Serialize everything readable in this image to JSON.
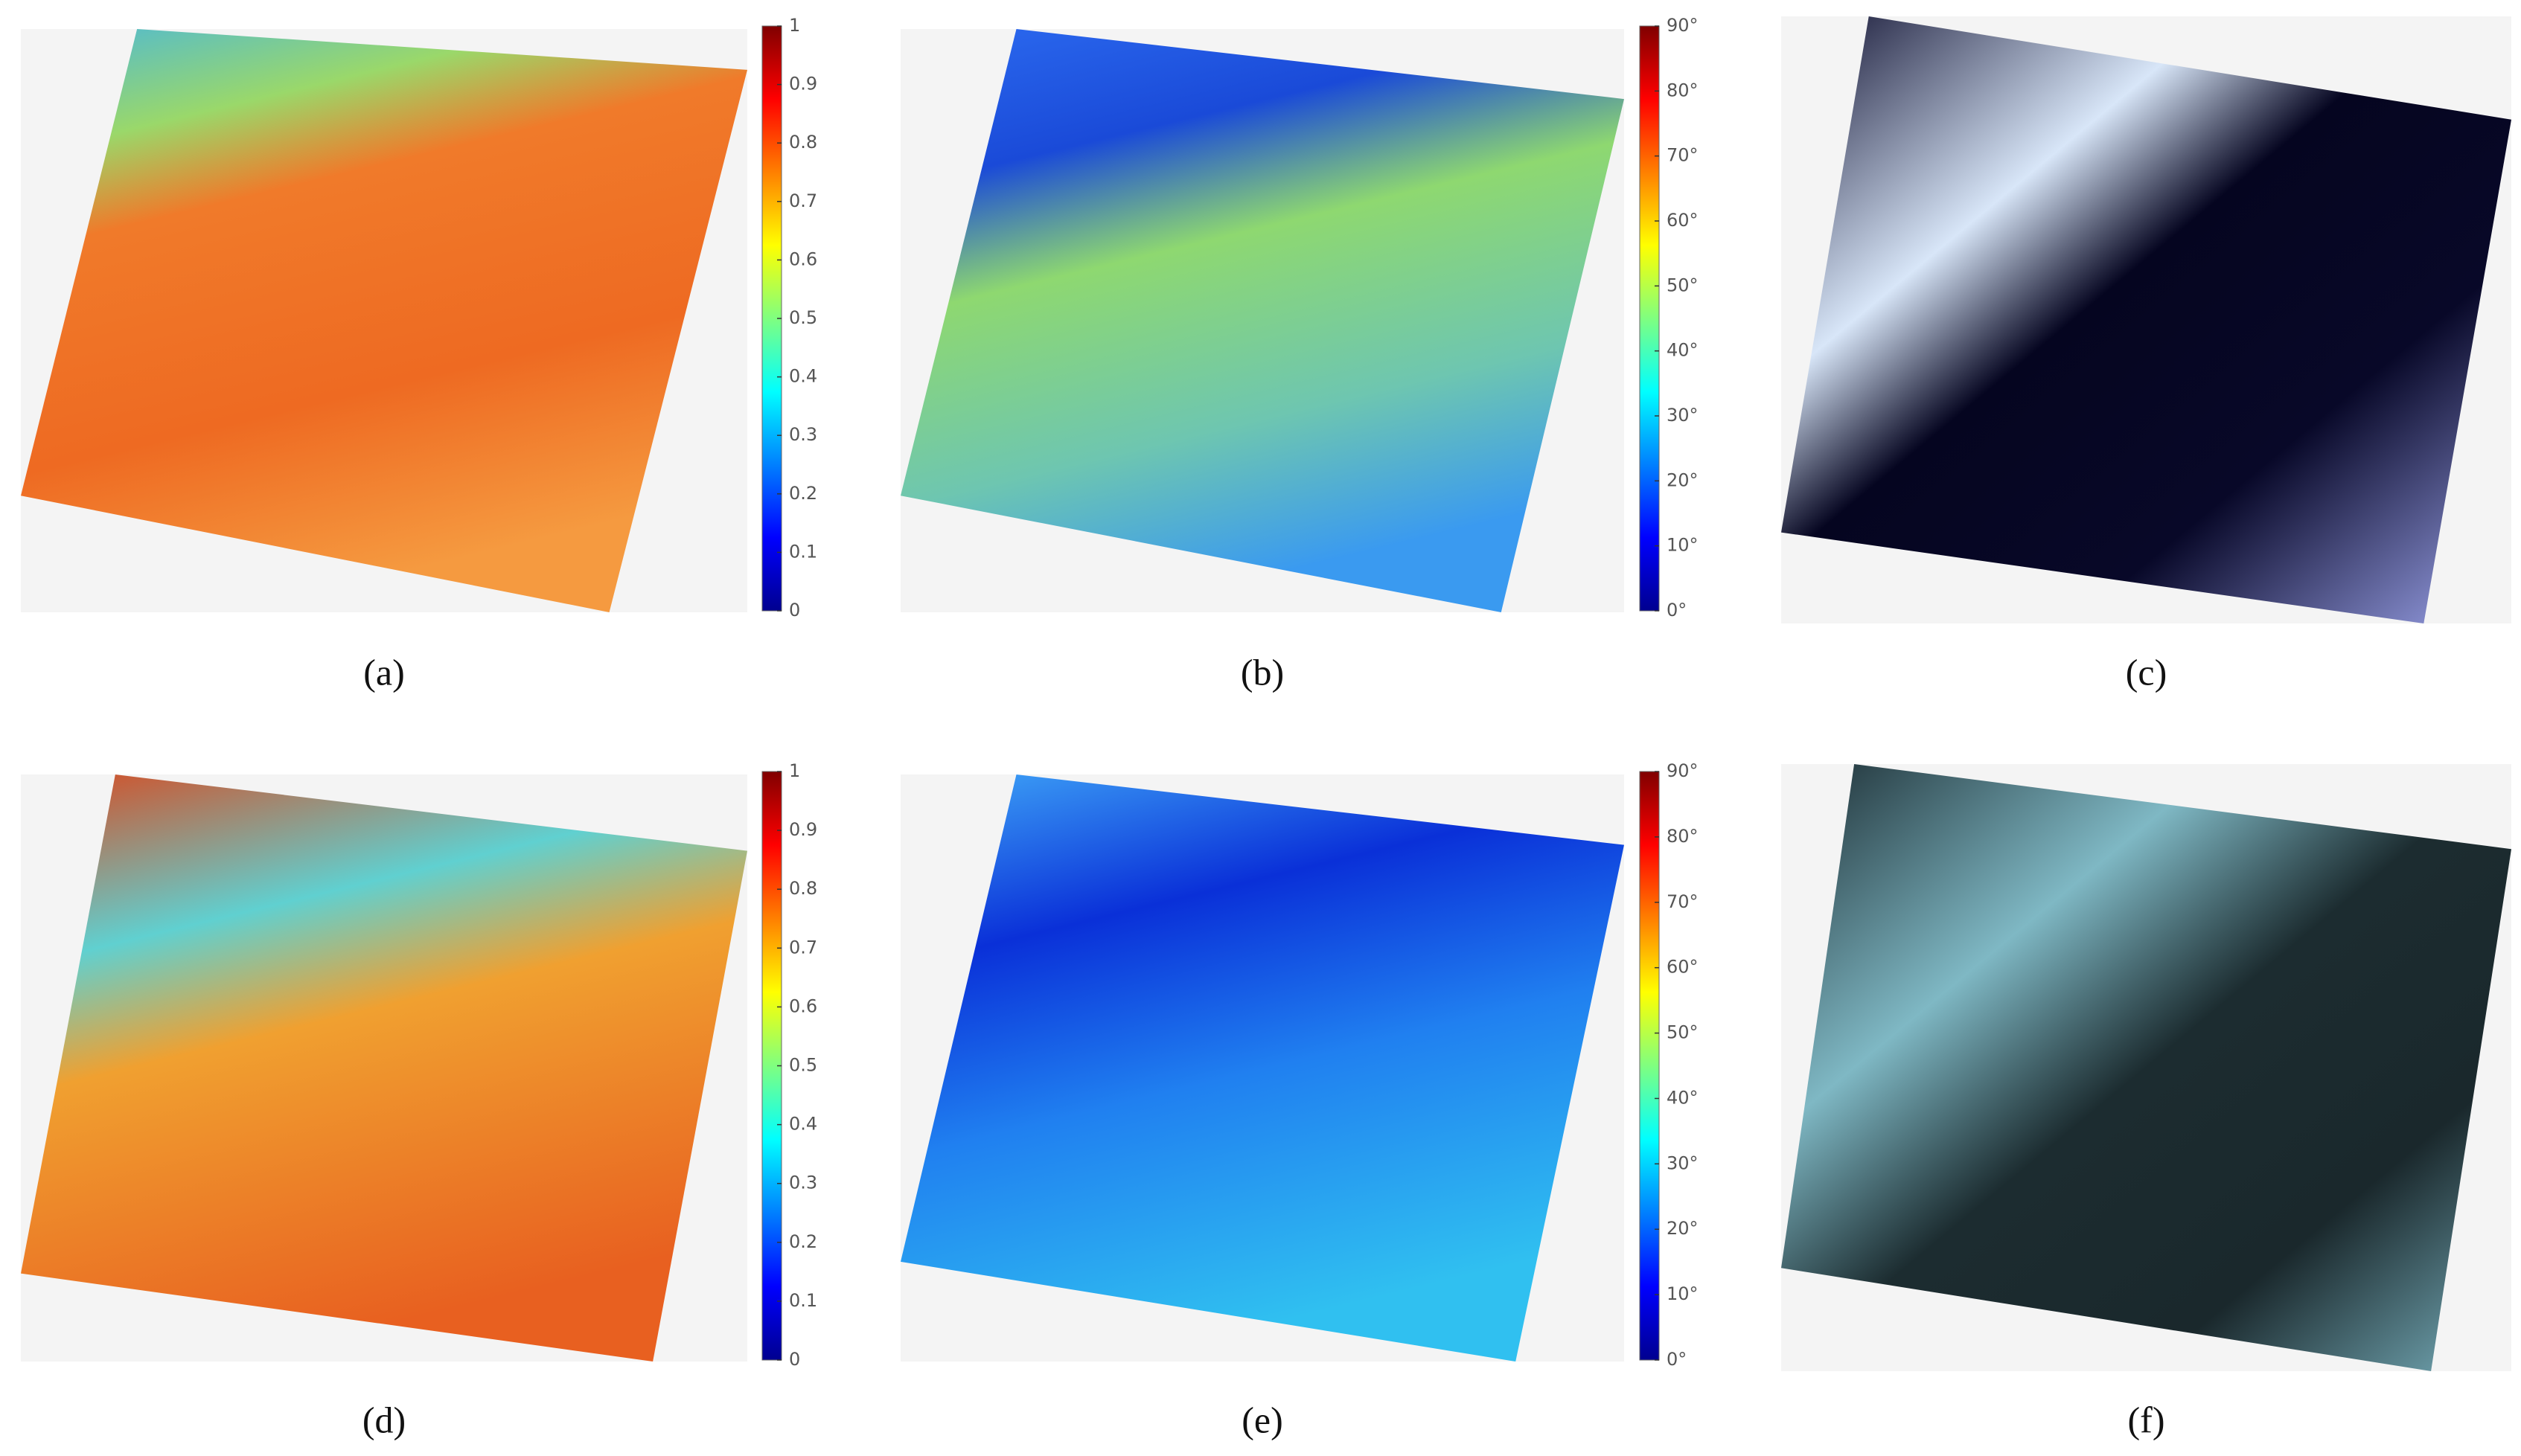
{
  "panels": [
    {
      "label": "(a)",
      "colorbar": {
        "ylim": [
          0,
          1
        ],
        "yticks": [
          0,
          0.1,
          0.2,
          0.3,
          0.4,
          0.5,
          0.6,
          0.7,
          0.8,
          0.9,
          1
        ]
      }
    },
    {
      "label": "(b)",
      "colorbar": {
        "ylim": [
          0,
          90
        ],
        "yticks": [
          {
            "value": 0,
            "label": "0°"
          },
          {
            "value": 10,
            "label": "10°"
          },
          {
            "value": 20,
            "label": "20°"
          },
          {
            "value": 30,
            "label": "30°"
          },
          {
            "value": 40,
            "label": "40°"
          },
          {
            "value": 50,
            "label": "50°"
          },
          {
            "value": 60,
            "label": "60°"
          },
          {
            "value": 70,
            "label": "70°"
          },
          {
            "value": 80,
            "label": "80°"
          },
          {
            "value": 90,
            "label": "90°"
          }
        ]
      }
    },
    {
      "label": "(c)"
    },
    {
      "label": "(d)",
      "colorbar": {
        "ylim": [
          0,
          1
        ],
        "yticks": [
          0,
          0.1,
          0.2,
          0.3,
          0.4,
          0.5,
          0.6,
          0.7,
          0.8,
          0.9,
          1
        ]
      }
    },
    {
      "label": "(e)",
      "colorbar": {
        "ylim": [
          0,
          90
        ],
        "yticks": [
          {
            "value": 0,
            "label": "0°"
          },
          {
            "value": 10,
            "label": "10°"
          },
          {
            "value": 20,
            "label": "20°"
          },
          {
            "value": 30,
            "label": "30°"
          },
          {
            "value": 40,
            "label": "40°"
          },
          {
            "value": 50,
            "label": "50°"
          },
          {
            "value": 60,
            "label": "60°"
          },
          {
            "value": 70,
            "label": "70°"
          },
          {
            "value": 80,
            "label": "80°"
          },
          {
            "value": 90,
            "label": "90°"
          }
        ]
      }
    },
    {
      "label": "(f)"
    }
  ]
}
